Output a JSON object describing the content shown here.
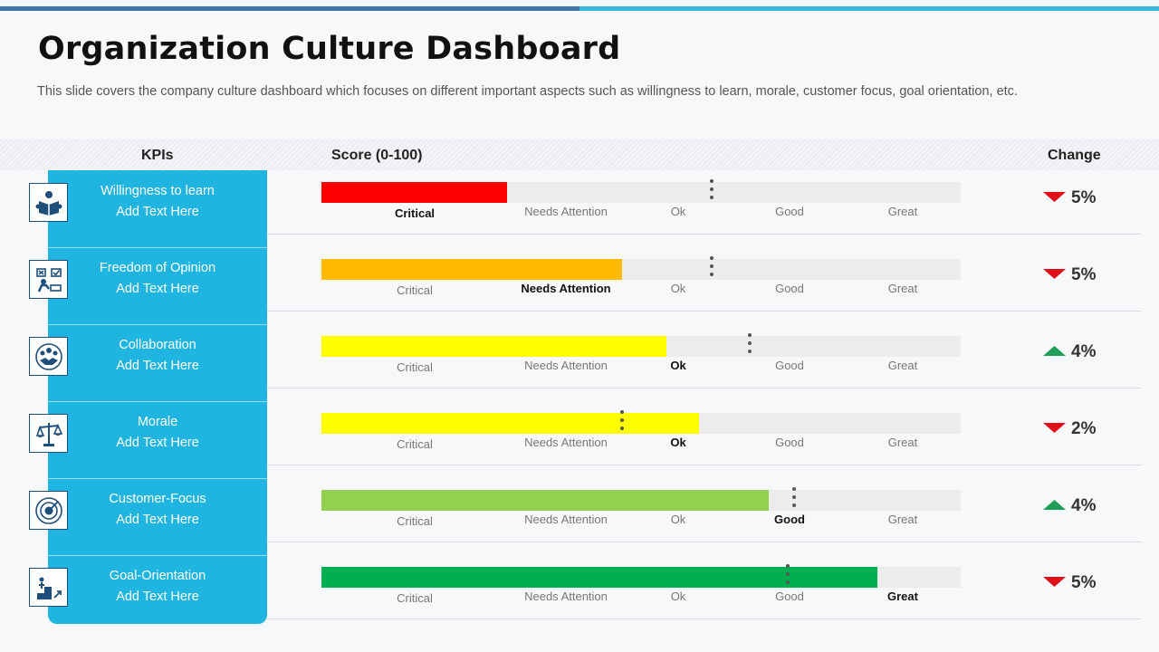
{
  "title": "Organization Culture Dashboard",
  "subtitle": "This slide covers the company culture dashboard which focuses on different important aspects such as willingness to learn, morale, customer focus, goal orientation, etc.",
  "headers": {
    "kpi": "KPIs",
    "score": "Score (0-100)",
    "change": "Change"
  },
  "colors": {
    "accent": "#20b4e0",
    "brand_dark": "#3f74a6",
    "up": "#1e9e57",
    "down": "#e0101a"
  },
  "chart_data": {
    "type": "bar",
    "orientation": "horizontal",
    "ylim": [
      0,
      100
    ],
    "scale_labels": [
      "Critical",
      "Needs Attention",
      "Ok",
      "Good",
      "Great"
    ],
    "categories": [
      "Willingness to learn",
      "Freedom of Opinion",
      "Collaboration",
      "Morale",
      "Customer-Focus",
      "Goal-Orientation"
    ],
    "values": [
      29,
      47,
      54,
      59,
      70,
      87
    ],
    "targets": [
      61,
      61,
      67,
      47,
      74,
      73
    ]
  },
  "rows": [
    {
      "name": "Willingness to learn",
      "sub": "Add Text Here",
      "icon": "reading-icon",
      "value": 29,
      "target": 61,
      "color": "#ff0000",
      "rating": "Critical",
      "direction": "down",
      "change": "5%"
    },
    {
      "name": "Freedom of Opinion",
      "sub": "Add Text Here",
      "icon": "opinion-icon",
      "value": 47,
      "target": 61,
      "color": "#ffbb00",
      "rating": "Needs Attention",
      "direction": "down",
      "change": "5%"
    },
    {
      "name": "Collaboration",
      "sub": "Add Text Here",
      "icon": "handshake-icon",
      "value": 54,
      "target": 67,
      "color": "#ffff00",
      "rating": "Ok",
      "direction": "up",
      "change": "4%"
    },
    {
      "name": "Morale",
      "sub": "Add Text Here",
      "icon": "scale-icon",
      "value": 59,
      "target": 47,
      "color": "#ffff00",
      "rating": "Ok",
      "direction": "down",
      "change": "2%"
    },
    {
      "name": "Customer-Focus",
      "sub": "Add Text Here",
      "icon": "target-icon",
      "value": 70,
      "target": 74,
      "color": "#92d050",
      "rating": "Good",
      "direction": "up",
      "change": "4%"
    },
    {
      "name": "Goal-Orientation",
      "sub": "Add Text Here",
      "icon": "stairs-goal-icon",
      "value": 87,
      "target": 73,
      "color": "#00b050",
      "rating": "Great",
      "direction": "down",
      "change": "5%"
    }
  ]
}
